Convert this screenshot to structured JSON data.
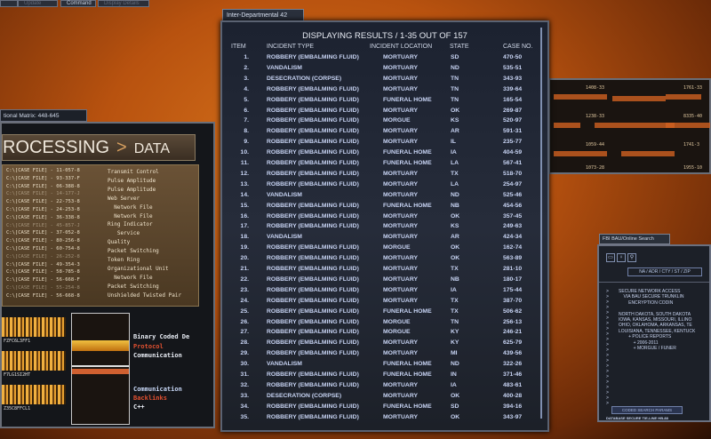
{
  "top_tabs": [
    "",
    "Update",
    "Command",
    "Display Details"
  ],
  "main": {
    "tab": "Inter-Departmental 42",
    "title": "DISPLAYING RESULTS / 1-35 OUT OF 157",
    "columns": [
      "ITEM",
      "INCIDENT TYPE",
      "INCIDENT LOCATION",
      "STATE",
      "CASE NO."
    ],
    "rows": [
      [
        "1.",
        "ROBBERY (EMBALMING FLUID)",
        "MORTUARY",
        "SD",
        "470-50"
      ],
      [
        "2.",
        "VANDALISM",
        "MORTUARY",
        "ND",
        "535-51"
      ],
      [
        "3.",
        "DESECRATION (CORPSE)",
        "MORTUARY",
        "TN",
        "343-93"
      ],
      [
        "4.",
        "ROBBERY (EMBALMING FLUID)",
        "MORTUARY",
        "TN",
        "339-64"
      ],
      [
        "5.",
        "ROBBERY (EMBALMING FLUID)",
        "FUNERAL HOME",
        "TN",
        "165-54"
      ],
      [
        "6.",
        "ROBBERY (EMBALMING FLUID)",
        "MORTUARY",
        "OK",
        "269-87"
      ],
      [
        "7.",
        "ROBBERY (EMBALMING FLUID)",
        "MORGUE",
        "KS",
        "520-97"
      ],
      [
        "8.",
        "ROBBERY (EMBALMING FLUID)",
        "MORTUARY",
        "AR",
        "591-31"
      ],
      [
        "9.",
        "ROBBERY (EMBALMING FLUID)",
        "MORTUARY",
        "IL",
        "235-77"
      ],
      [
        "10.",
        "ROBBERY (EMBALMING FLUID)",
        "FUNERAL HOME",
        "IA",
        "404-59"
      ],
      [
        "11.",
        "ROBBERY (EMBALMING FLUID)",
        "FUNERAL HOME",
        "LA",
        "567-41"
      ],
      [
        "12.",
        "ROBBERY (EMBALMING FLUID)",
        "MORTUARY",
        "TX",
        "518-70"
      ],
      [
        "13.",
        "ROBBERY (EMBALMING FLUID)",
        "MORTUARY",
        "LA",
        "254-97"
      ],
      [
        "14.",
        "VANDALISM",
        "MORTUARY",
        "ND",
        "525-46"
      ],
      [
        "15.",
        "ROBBERY (EMBALMING FLUID)",
        "FUNERAL HOME",
        "NB",
        "454-56"
      ],
      [
        "16.",
        "ROBBERY (EMBALMING FLUID)",
        "MORTUARY",
        "OK",
        "357-45"
      ],
      [
        "17.",
        "ROBBERY (EMBALMING FLUID)",
        "MORTUARY",
        "KS",
        "249-63"
      ],
      [
        "18.",
        "VANDALISM",
        "MORTUARY",
        "AR",
        "424-34"
      ],
      [
        "19.",
        "ROBBERY (EMBALMING FLUID)",
        "MORGUE",
        "OK",
        "162-74"
      ],
      [
        "20.",
        "ROBBERY (EMBALMING FLUID)",
        "MORTUARY",
        "OK",
        "563-89"
      ],
      [
        "21.",
        "ROBBERY (EMBALMING FLUID)",
        "MORTUARY",
        "TX",
        "281-10"
      ],
      [
        "22.",
        "ROBBERY (EMBALMING FLUID)",
        "MORTUARY",
        "NB",
        "180-17"
      ],
      [
        "23.",
        "ROBBERY (EMBALMING FLUID)",
        "MORTUARY",
        "IA",
        "175-44"
      ],
      [
        "24.",
        "ROBBERY (EMBALMING FLUID)",
        "MORTUARY",
        "TX",
        "387-70"
      ],
      [
        "25.",
        "ROBBERY (EMBALMING FLUID)",
        "FUNERAL HOME",
        "TX",
        "506-62"
      ],
      [
        "26.",
        "ROBBERY (EMBALMING FLUID)",
        "MORGUE",
        "TN",
        "256-13"
      ],
      [
        "27.",
        "ROBBERY (EMBALMING FLUID)",
        "MORGUE",
        "KY",
        "246-21"
      ],
      [
        "28.",
        "ROBBERY (EMBALMING FLUID)",
        "MORTUARY",
        "KY",
        "625-79"
      ],
      [
        "29.",
        "ROBBERY (EMBALMING FLUID)",
        "MORTUARY",
        "MI",
        "439-56"
      ],
      [
        "30.",
        "VANDALISM",
        "FUNERAL HOME",
        "ND",
        "322-26"
      ],
      [
        "31.",
        "ROBBERY (EMBALMING FLUID)",
        "FUNERAL HOME",
        "IN",
        "371-46"
      ],
      [
        "32.",
        "ROBBERY (EMBALMING FLUID)",
        "MORTUARY",
        "IA",
        "483-61"
      ],
      [
        "33.",
        "DESECRATION (CORPSE)",
        "MORTUARY",
        "OK",
        "400-28"
      ],
      [
        "34.",
        "ROBBERY (EMBALMING FLUID)",
        "FUNERAL HOME",
        "SD",
        "394-16"
      ],
      [
        "35.",
        "ROBBERY (EMBALMING FLUID)",
        "MORTUARY",
        "OK",
        "343-97"
      ]
    ]
  },
  "left": {
    "tab": "tional Matrix: 448-645",
    "heading": "ROCESSING",
    "heading_arrow": ">",
    "heading_right": "DATA",
    "files": [
      "C:\\[CASE FILE] - 11-057-8",
      "C:\\[CASE FILE] - 93-337-F",
      "C:\\[CASE FILE] - 06-388-8",
      "C:\\[CASE FILE] - 14-177-J",
      "C:\\[CASE FILE] - 22-753-8",
      "C:\\[CASE FILE] - 24-253-8",
      "C:\\[CASE FILE] - 36-338-8",
      "C:\\[CASE FILE] - 45-857-J",
      "C:\\[CASE FILE] - 37-052-8",
      "C:\\[CASE FILE] - 80-256-8",
      "C:\\[CASE FILE] - 60-754-8",
      "C:\\[CASE FILE] - 26-252-8",
      "C:\\[CASE FILE] - 49-354-3",
      "C:\\[CASE FILE] - 58-785-8",
      "C:\\[CASE FILE] - 56-668-F",
      "C:\\[CASE FILE] - 55-254-8",
      "C:\\[CASE FILE] - 56-668-8"
    ],
    "terms": [
      "Transmit Control",
      "Pulse Amplitude",
      "Pulse Amplitude",
      "Web Server",
      "  Network File",
      "  Network File",
      "Ring Indicator",
      "   Service",
      "Quality",
      "Packet Switching",
      "Token Ring",
      "Organizational Unit",
      "  Network File",
      "Packet Switching",
      "Unshielded Twisted Pair"
    ],
    "bar_codes": [
      "FZFC6L3FF1",
      "F7LG1SI2HT",
      "Z35C8FFCL1"
    ],
    "binary_terms": [
      {
        "text": "Binary Coded De",
        "color": "#e8ecf4"
      },
      {
        "text": "Protocol",
        "color": "#e05030"
      },
      {
        "text": "Communication",
        "color": "#e8ecf4"
      },
      {
        "text": "Communication",
        "color": "#c8d8f8"
      },
      {
        "text": "Backlinks",
        "color": "#e05030"
      },
      {
        "text": "C++",
        "color": "#e8ecf4"
      }
    ]
  },
  "right_top": {
    "labels": [
      "1408-33",
      "1761-33",
      "1238-33",
      "8335-40",
      "1059-44",
      "1741-3",
      "1073-28",
      "1955-10"
    ]
  },
  "search": {
    "tab": "FBI BAU/Online Search",
    "field": "NA / ADR / CTY / ST / ZIP",
    "lines": [
      "SECURE NETWORK ACCESS",
      "    VIA BAU SECURE TRUNKLIN",
      "        ENCRYPTION CODIN",
      "",
      "NORTH DAKOTA, SOUTH DAKOTA",
      "IOWA, KANSAS, MISSOURI, ILLINO",
      "OHIO, OKLAHOMA, ARKANSAS, TE",
      "LOUISIANA, TENNESSEE, KENTUCK",
      "        + POLICE REPORTS",
      "            + 2006-2011",
      "            + MORGUE / FUNER"
    ],
    "button": "CODED SEARCH PARAMS",
    "footer": "DATABASE SECURE TIE-LINE HB-88"
  }
}
